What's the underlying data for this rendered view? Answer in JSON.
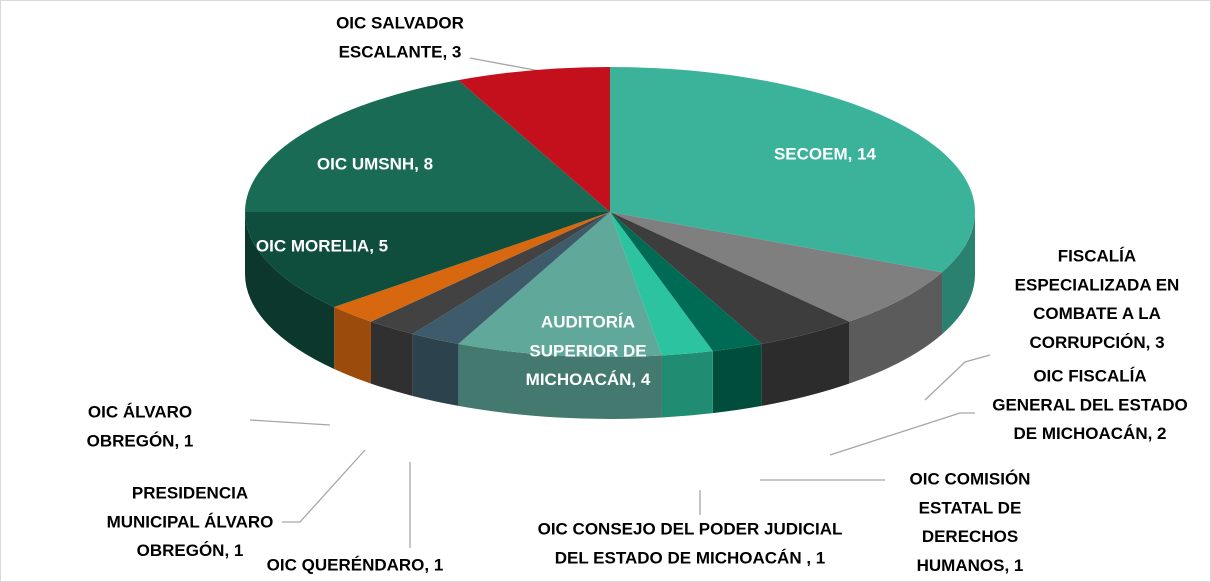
{
  "chart_data": {
    "type": "pie3d",
    "categories": [
      [
        "SECOEM, 14"
      ],
      [
        "FISCALÍA",
        "ESPECIALIZADA EN",
        "COMBATE A LA",
        "CORRUPCIÓN, 3"
      ],
      [
        "OIC FISCALÍA",
        "GENERAL DEL ESTADO",
        "DE MICHOACÁN, 2"
      ],
      [
        "OIC COMISIÓN",
        "ESTATAL DE",
        "DERECHOS",
        "HUMANOS, 1"
      ],
      [
        "OIC CONSEJO DEL PODER JUDICIAL",
        "DEL ESTADO DE MICHOACÁN , 1"
      ],
      [
        "AUDITORÍA",
        "SUPERIOR DE",
        "MICHOACÁN, 4"
      ],
      [
        "OIC QUERÉNDARO, 1"
      ],
      [
        "PRESIDENCIA",
        "MUNICIPAL ÁLVARO",
        "OBREGÓN, 1"
      ],
      [
        "OIC ÁLVARO",
        "OBREGÓN, 1"
      ],
      [
        "OIC MORELIA, 5"
      ],
      [
        "OIC UMSNH, 8"
      ],
      [
        "OIC SALVADOR",
        "ESCALANTE, 3"
      ]
    ],
    "values": [
      14,
      3,
      2,
      1,
      1,
      4,
      1,
      1,
      1,
      5,
      8,
      3
    ],
    "colors": [
      "#3bb39b",
      "#7f7f7f",
      "#3d3d3d",
      "#006b54",
      "#2cc4a0",
      "#5fa89a",
      "#3d5b6b",
      "#424242",
      "#d7680f",
      "#0f4d3d",
      "#1a6b55",
      "#c4101c"
    ]
  }
}
